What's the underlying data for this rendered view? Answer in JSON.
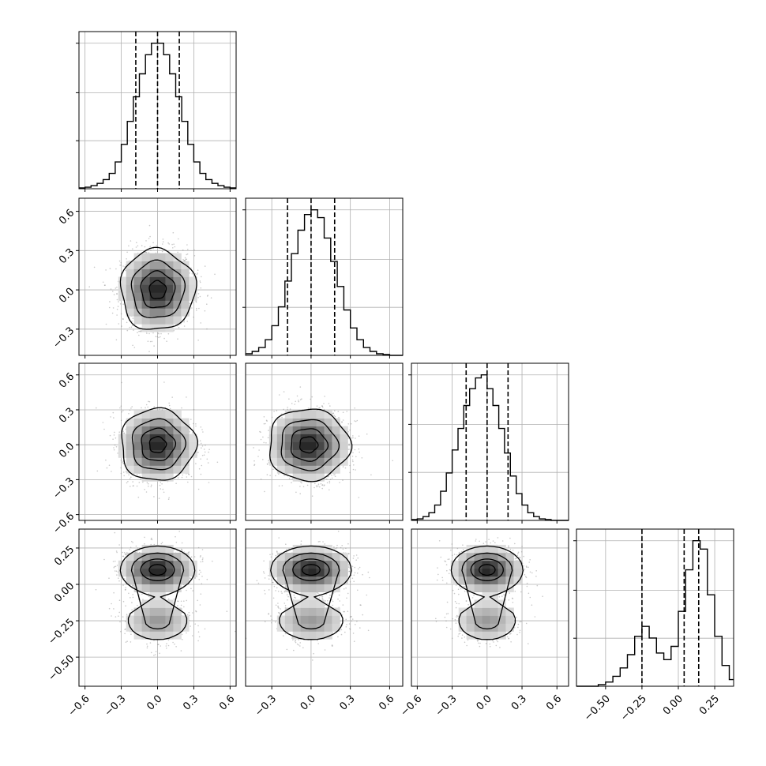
{
  "chart_data": {
    "type": "corner",
    "grid": true,
    "n_params": 4,
    "axis_ranges": [
      [
        -0.65,
        0.65
      ],
      [
        -0.5,
        0.7
      ],
      [
        -0.65,
        0.7
      ],
      [
        -0.7,
        0.38
      ]
    ],
    "axis_ticks": [
      [
        "−0.6",
        "−0.3",
        "0.0",
        "0.3",
        "0.6"
      ],
      [
        "−0.3",
        "0.0",
        "0.3",
        "0.6"
      ],
      [
        "−0.6",
        "−0.3",
        "0.0",
        "0.3",
        "0.6"
      ],
      [
        "−0.50",
        "−0.25",
        "0.00",
        "0.25"
      ]
    ],
    "axis_tick_values": [
      [
        -0.6,
        -0.3,
        0.0,
        0.3,
        0.6
      ],
      [
        -0.3,
        0.0,
        0.3,
        0.6
      ],
      [
        -0.6,
        -0.3,
        0.0,
        0.3,
        0.6
      ],
      [
        -0.5,
        -0.25,
        0.0,
        0.25
      ]
    ],
    "histograms": [
      {
        "param": 0,
        "bin_edges": [
          -0.65,
          -0.6,
          -0.55,
          -0.5,
          -0.45,
          -0.4,
          -0.35,
          -0.3,
          -0.25,
          -0.2,
          -0.15,
          -0.1,
          -0.05,
          0.0,
          0.05,
          0.1,
          0.15,
          0.2,
          0.25,
          0.3,
          0.35,
          0.4,
          0.45,
          0.5,
          0.55,
          0.6,
          0.65
        ],
        "counts": [
          1,
          2,
          4,
          7,
          12,
          20,
          35,
          58,
          88,
          120,
          150,
          175,
          190,
          190,
          175,
          150,
          120,
          88,
          58,
          35,
          20,
          12,
          7,
          4,
          2,
          1
        ],
        "quantiles": [
          -0.18,
          0.0,
          0.18
        ]
      },
      {
        "param": 1,
        "bin_edges": [
          -0.5,
          -0.45,
          -0.4,
          -0.35,
          -0.3,
          -0.25,
          -0.2,
          -0.15,
          -0.1,
          -0.05,
          0.0,
          0.05,
          0.1,
          0.15,
          0.2,
          0.25,
          0.3,
          0.35,
          0.4,
          0.45,
          0.5,
          0.55,
          0.6,
          0.65,
          0.7
        ],
        "counts": [
          2,
          5,
          10,
          20,
          38,
          62,
          95,
          130,
          160,
          180,
          186,
          176,
          150,
          120,
          88,
          58,
          35,
          20,
          10,
          5,
          2,
          1,
          0,
          0
        ],
        "quantiles": [
          -0.18,
          0.0,
          0.18
        ]
      },
      {
        "param": 2,
        "bin_edges": [
          -0.65,
          -0.6,
          -0.55,
          -0.5,
          -0.45,
          -0.4,
          -0.35,
          -0.3,
          -0.25,
          -0.2,
          -0.15,
          -0.1,
          -0.05,
          0.0,
          0.05,
          0.1,
          0.15,
          0.2,
          0.25,
          0.3,
          0.35,
          0.4,
          0.45,
          0.5,
          0.55,
          0.6,
          0.65,
          0.7
        ],
        "counts": [
          1,
          2,
          5,
          10,
          20,
          38,
          62,
          92,
          120,
          150,
          172,
          186,
          190,
          172,
          150,
          120,
          88,
          58,
          35,
          20,
          10,
          5,
          2,
          1,
          0,
          0,
          0
        ],
        "quantiles": [
          -0.18,
          0.0,
          0.18
        ]
      },
      {
        "param": 3,
        "bin_edges": [
          -0.7,
          -0.65,
          -0.6,
          -0.55,
          -0.5,
          -0.45,
          -0.4,
          -0.35,
          -0.3,
          -0.25,
          -0.2,
          -0.15,
          -0.1,
          -0.05,
          0.0,
          0.05,
          0.1,
          0.15,
          0.2,
          0.25,
          0.3,
          0.35,
          0.38
        ],
        "counts": [
          0,
          0,
          0,
          2,
          5,
          12,
          22,
          38,
          60,
          72,
          58,
          40,
          32,
          48,
          90,
          140,
          175,
          165,
          110,
          60,
          25,
          8
        ],
        "quantiles": [
          -0.25,
          0.04,
          0.14
        ]
      }
    ],
    "joint_panels": [
      {
        "x_param": 0,
        "y_param": 1,
        "shape": "gaussian",
        "center": [
          0.0,
          0.0
        ],
        "sigma": [
          0.15,
          0.15
        ]
      },
      {
        "x_param": 0,
        "y_param": 2,
        "shape": "gaussian",
        "center": [
          0.0,
          0.0
        ],
        "sigma": [
          0.15,
          0.15
        ]
      },
      {
        "x_param": 1,
        "y_param": 2,
        "shape": "gaussian",
        "center": [
          -0.02,
          0.0
        ],
        "sigma": [
          0.15,
          0.15
        ]
      },
      {
        "x_param": 0,
        "y_param": 3,
        "shape": "bimodal",
        "centers": [
          [
            0.0,
            0.1
          ],
          [
            0.0,
            -0.25
          ]
        ],
        "sigma": [
          0.15,
          0.08
        ]
      },
      {
        "x_param": 1,
        "y_param": 3,
        "shape": "bimodal",
        "centers": [
          [
            0.0,
            0.1
          ],
          [
            0.0,
            -0.25
          ]
        ],
        "sigma": [
          0.15,
          0.08
        ]
      },
      {
        "x_param": 2,
        "y_param": 3,
        "shape": "bimodal",
        "centers": [
          [
            0.0,
            0.1
          ],
          [
            0.0,
            -0.25
          ]
        ],
        "sigma": [
          0.15,
          0.08
        ]
      }
    ],
    "colors": {
      "line": "#000000",
      "grid": "#b0b0b0",
      "points": "#888888",
      "fill_light": "#e6e6e6",
      "fill_mid": "#a0a0a0",
      "fill_dark": "#404040"
    }
  }
}
